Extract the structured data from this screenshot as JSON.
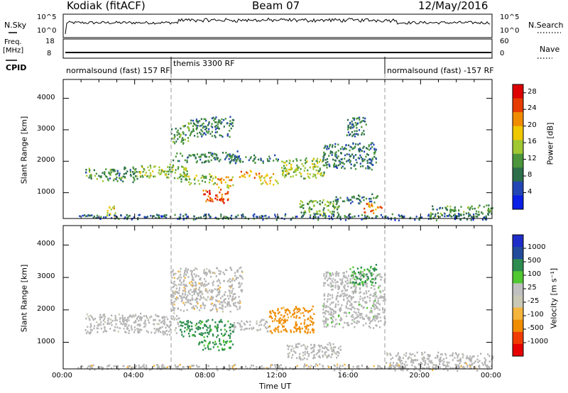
{
  "header": {
    "site": "Kodiak (fitACF)",
    "beam": "Beam 07",
    "date": "12/May/2016"
  },
  "top_panels": {
    "nsky_label": "N.Sky",
    "nsearch_label": "N.Search",
    "nsky_ticks": [
      "10^5",
      "10^0"
    ],
    "nsearch_ticks": [
      "10^5",
      "10^0"
    ],
    "freq_label": "Freq.",
    "freq_unit": "[MHz]",
    "freq_ticks": [
      "18",
      "8"
    ],
    "nave_label": "Nave",
    "nave_ticks": [
      "60",
      "0"
    ],
    "cpid_label": "CPID",
    "cpid_segments": [
      {
        "label": "normalsound (fast) 157 RF",
        "start_h": 0,
        "end_h": 6
      },
      {
        "label": "themis 3300 RF",
        "start_h": 6,
        "end_h": 18
      },
      {
        "label": "normalsound (fast) -157 RF",
        "start_h": 18,
        "end_h": 24
      }
    ]
  },
  "colors": {
    "power_scale": [
      "#0a1ee6",
      "#2346b4",
      "#2d6e4b",
      "#4b963c",
      "#a0c832",
      "#f0c800",
      "#f08c00",
      "#e63c00",
      "#dc0000"
    ],
    "velocity_scale": [
      "#e60000",
      "#f03c00",
      "#f08c00",
      "#f5b43c",
      "#c8c8b4",
      "#c0c0c0",
      "#50c832",
      "#2d8c50",
      "#234b9b",
      "#1e2dc8"
    ],
    "ground_scatter": "#b4b4b4"
  },
  "chart_data": [
    {
      "type": "heatmap",
      "name": "power",
      "ylabel": "Slant Range [km]",
      "x_range_h": [
        0,
        24
      ],
      "ylim_km": [
        180,
        4600
      ],
      "yticks": [
        1000,
        2000,
        3000,
        4000
      ],
      "colorbar_label": "Power [dB]",
      "colorbar_ticks": [
        4,
        8,
        12,
        16,
        20,
        24,
        28
      ],
      "colorbar_range": [
        0,
        30
      ],
      "features": [
        {
          "t": [
            1.2,
            4.2
          ],
          "r": [
            1400,
            1800
          ],
          "v": 10
        },
        {
          "t": [
            4.2,
            7.0
          ],
          "r": [
            1500,
            1900
          ],
          "v": 14
        },
        {
          "t": [
            6.5,
            8.5
          ],
          "r": [
            1300,
            1600
          ],
          "v": 14
        },
        {
          "t": [
            7.8,
            9.2
          ],
          "r": [
            700,
            1100
          ],
          "v": 26
        },
        {
          "t": [
            8.5,
            9.5
          ],
          "r": [
            1200,
            1500
          ],
          "v": 20
        },
        {
          "t": [
            9.8,
            11.0
          ],
          "r": [
            1500,
            1700
          ],
          "v": 22
        },
        {
          "t": [
            11.0,
            12.0
          ],
          "r": [
            1300,
            1600
          ],
          "v": 18
        },
        {
          "t": [
            12.2,
            14.6
          ],
          "r": [
            1500,
            2100
          ],
          "v": 14
        },
        {
          "t": [
            6.0,
            9.8
          ],
          "r": [
            2000,
            2300
          ],
          "v": 8
        },
        {
          "t": [
            6.0,
            7.0
          ],
          "r": [
            2600,
            3200
          ],
          "v": 10
        },
        {
          "t": [
            7.0,
            9.5
          ],
          "r": [
            2800,
            3400
          ],
          "v": 8
        },
        {
          "t": [
            9.0,
            12.0
          ],
          "r": [
            2000,
            2200
          ],
          "v": 8
        },
        {
          "t": [
            14.5,
            17.5
          ],
          "r": [
            1800,
            2600
          ],
          "v": 8
        },
        {
          "t": [
            15.8,
            17.0
          ],
          "r": [
            2800,
            3400
          ],
          "v": 8
        },
        {
          "t": [
            13.2,
            15.4
          ],
          "r": [
            300,
            800
          ],
          "v": 12
        },
        {
          "t": [
            15.2,
            17.6
          ],
          "r": [
            700,
            950
          ],
          "v": 8
        },
        {
          "t": [
            16.8,
            17.8
          ],
          "r": [
            400,
            700
          ],
          "v": 24
        },
        {
          "t": [
            20.5,
            24.0
          ],
          "r": [
            250,
            600
          ],
          "v": 10
        },
        {
          "t": [
            2.4,
            3.0
          ],
          "r": [
            300,
            600
          ],
          "v": 18
        },
        {
          "t": [
            0.8,
            24.0
          ],
          "r": [
            180,
            330
          ],
          "v": 6
        }
      ]
    },
    {
      "type": "heatmap",
      "name": "velocity",
      "ylabel": "Slant Range [km]",
      "xlabel": "Time UT",
      "x_range_h": [
        0,
        24
      ],
      "x_ticks": [
        "00:00",
        "04:00",
        "08:00",
        "12:00",
        "16:00",
        "20:00",
        "00:00"
      ],
      "ylim_km": [
        180,
        4600
      ],
      "yticks": [
        1000,
        2000,
        3000,
        4000
      ],
      "colorbar_label": "Velocity [m s⁻¹]",
      "colorbar_ticks": [
        "1000",
        "500",
        "100",
        "25",
        "-25",
        "-100",
        "-500",
        "-1000"
      ],
      "features": [
        {
          "t": [
            1.2,
            6.5
          ],
          "r": [
            1300,
            1900
          ],
          "v": 0
        },
        {
          "t": [
            6.5,
            9.5
          ],
          "r": [
            1200,
            1700
          ],
          "v": 150
        },
        {
          "t": [
            7.5,
            9.5
          ],
          "r": [
            800,
            1100
          ],
          "v": 120
        },
        {
          "t": [
            9.5,
            11.5
          ],
          "r": [
            1400,
            1700
          ],
          "v": 0
        },
        {
          "t": [
            11.5,
            14.0
          ],
          "r": [
            1300,
            2100
          ],
          "v": -150
        },
        {
          "t": [
            12.5,
            15.5
          ],
          "r": [
            500,
            1000
          ],
          "v": 0
        },
        {
          "t": [
            6.0,
            10.0
          ],
          "r": [
            2000,
            3300
          ],
          "v": -25
        },
        {
          "t": [
            14.5,
            18.0
          ],
          "r": [
            1500,
            3200
          ],
          "v": 20
        },
        {
          "t": [
            16.0,
            17.5
          ],
          "r": [
            2800,
            3400
          ],
          "v": 120
        },
        {
          "t": [
            18.0,
            24.0
          ],
          "r": [
            250,
            700
          ],
          "v": 0
        },
        {
          "t": [
            0.8,
            24.0
          ],
          "r": [
            180,
            330
          ],
          "v": -30
        }
      ]
    }
  ]
}
